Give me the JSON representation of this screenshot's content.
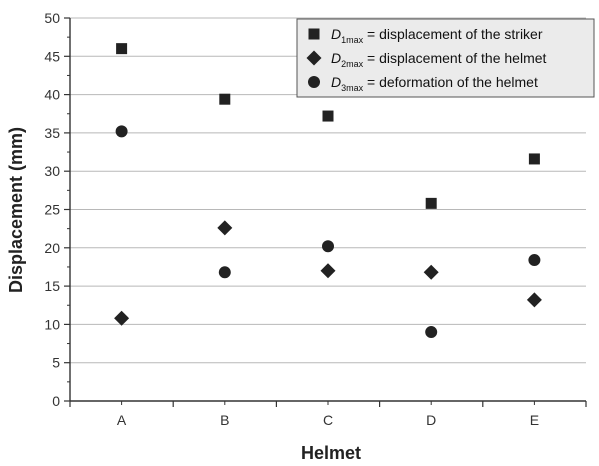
{
  "chart_data": {
    "type": "scatter",
    "xlabel": "Helmet",
    "ylabel": "Displacement (mm)",
    "categories": [
      "A",
      "B",
      "C",
      "D",
      "E"
    ],
    "ylim": [
      0,
      50
    ],
    "yticks": [
      0,
      5,
      10,
      15,
      20,
      25,
      30,
      35,
      40,
      45,
      50
    ],
    "grid": "horizontal",
    "legend_position": "top-right",
    "series": [
      {
        "name": "D1max = displacement of the striker",
        "legend_symbol": "D",
        "legend_subscript": "1max",
        "legend_desc": "= displacement of the striker",
        "marker": "square",
        "color": "#222222",
        "values": [
          46.0,
          39.4,
          37.2,
          25.8,
          31.6
        ]
      },
      {
        "name": "D2max = displacement of the helmet",
        "legend_symbol": "D",
        "legend_subscript": "2max",
        "legend_desc": "= displacement of the helmet",
        "marker": "diamond",
        "color": "#222222",
        "values": [
          10.8,
          22.6,
          17.0,
          16.8,
          13.2
        ]
      },
      {
        "name": "D3max = deformation of the helmet",
        "legend_symbol": "D",
        "legend_subscript": "3max",
        "legend_desc": "= deformation of the helmet",
        "marker": "circle",
        "color": "#222222",
        "values": [
          35.2,
          16.8,
          20.2,
          9.0,
          18.4
        ]
      }
    ]
  }
}
